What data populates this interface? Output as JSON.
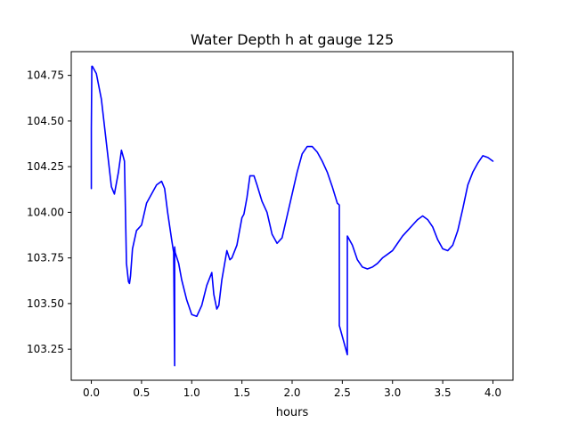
{
  "chart_data": {
    "type": "line",
    "title": "Water Depth h at gauge 125",
    "xlabel": "hours",
    "ylabel": "",
    "xlim": [
      -0.2,
      4.2
    ],
    "ylim": [
      103.08,
      104.88
    ],
    "xticks": [
      0.0,
      0.5,
      1.0,
      1.5,
      2.0,
      2.5,
      3.0,
      3.5,
      4.0
    ],
    "xtick_labels": [
      "0.0",
      "0.5",
      "1.0",
      "1.5",
      "2.0",
      "2.5",
      "3.0",
      "3.5",
      "4.0"
    ],
    "yticks": [
      103.25,
      103.5,
      103.75,
      104.0,
      104.25,
      104.5,
      104.75
    ],
    "ytick_labels": [
      "103.25",
      "103.50",
      "103.75",
      "104.00",
      "104.25",
      "104.50",
      "104.75"
    ],
    "grid": false,
    "legend": "none",
    "series": [
      {
        "color": "#0000ff",
        "x": [
          0.0,
          0.0,
          0.005,
          0.01,
          0.05,
          0.1,
          0.15,
          0.2,
          0.23,
          0.27,
          0.3,
          0.33,
          0.35,
          0.37,
          0.38,
          0.39,
          0.41,
          0.45,
          0.5,
          0.55,
          0.6,
          0.65,
          0.7,
          0.73,
          0.76,
          0.8,
          0.82,
          0.83,
          0.83,
          0.835,
          0.87,
          0.9,
          0.95,
          1.0,
          1.05,
          1.1,
          1.15,
          1.2,
          1.22,
          1.25,
          1.27,
          1.3,
          1.35,
          1.38,
          1.4,
          1.45,
          1.5,
          1.52,
          1.55,
          1.58,
          1.62,
          1.65,
          1.7,
          1.75,
          1.8,
          1.85,
          1.9,
          1.95,
          2.0,
          2.05,
          2.1,
          2.15,
          2.2,
          2.25,
          2.3,
          2.35,
          2.4,
          2.45,
          2.47,
          2.47,
          2.5,
          2.53,
          2.55,
          2.55,
          2.6,
          2.65,
          2.7,
          2.75,
          2.8,
          2.85,
          2.9,
          2.95,
          3.0,
          3.05,
          3.1,
          3.15,
          3.2,
          3.25,
          3.3,
          3.35,
          3.4,
          3.45,
          3.5,
          3.55,
          3.6,
          3.65,
          3.7,
          3.75,
          3.8,
          3.85,
          3.9,
          3.95,
          4.0
        ],
        "y": [
          104.13,
          104.46,
          104.8,
          104.8,
          104.76,
          104.62,
          104.38,
          104.14,
          104.1,
          104.22,
          104.34,
          104.28,
          103.72,
          103.62,
          103.61,
          103.65,
          103.8,
          103.9,
          103.93,
          104.05,
          104.1,
          104.15,
          104.17,
          104.13,
          104.0,
          103.85,
          103.78,
          103.16,
          103.81,
          103.78,
          103.72,
          103.63,
          103.52,
          103.44,
          103.43,
          103.49,
          103.6,
          103.67,
          103.55,
          103.47,
          103.49,
          103.63,
          103.79,
          103.74,
          103.75,
          103.82,
          103.97,
          103.99,
          104.08,
          104.2,
          104.2,
          104.15,
          104.06,
          104.0,
          103.88,
          103.83,
          103.86,
          103.98,
          104.1,
          104.22,
          104.32,
          104.36,
          104.36,
          104.33,
          104.28,
          104.22,
          104.14,
          104.05,
          104.04,
          103.38,
          103.32,
          103.26,
          103.22,
          103.87,
          103.82,
          103.74,
          103.7,
          103.69,
          103.7,
          103.72,
          103.75,
          103.77,
          103.79,
          103.83,
          103.87,
          103.9,
          103.93,
          103.96,
          103.98,
          103.96,
          103.92,
          103.85,
          103.8,
          103.79,
          103.82,
          103.9,
          104.02,
          104.15,
          104.22,
          104.27,
          104.31,
          104.3,
          104.28
        ]
      }
    ]
  }
}
